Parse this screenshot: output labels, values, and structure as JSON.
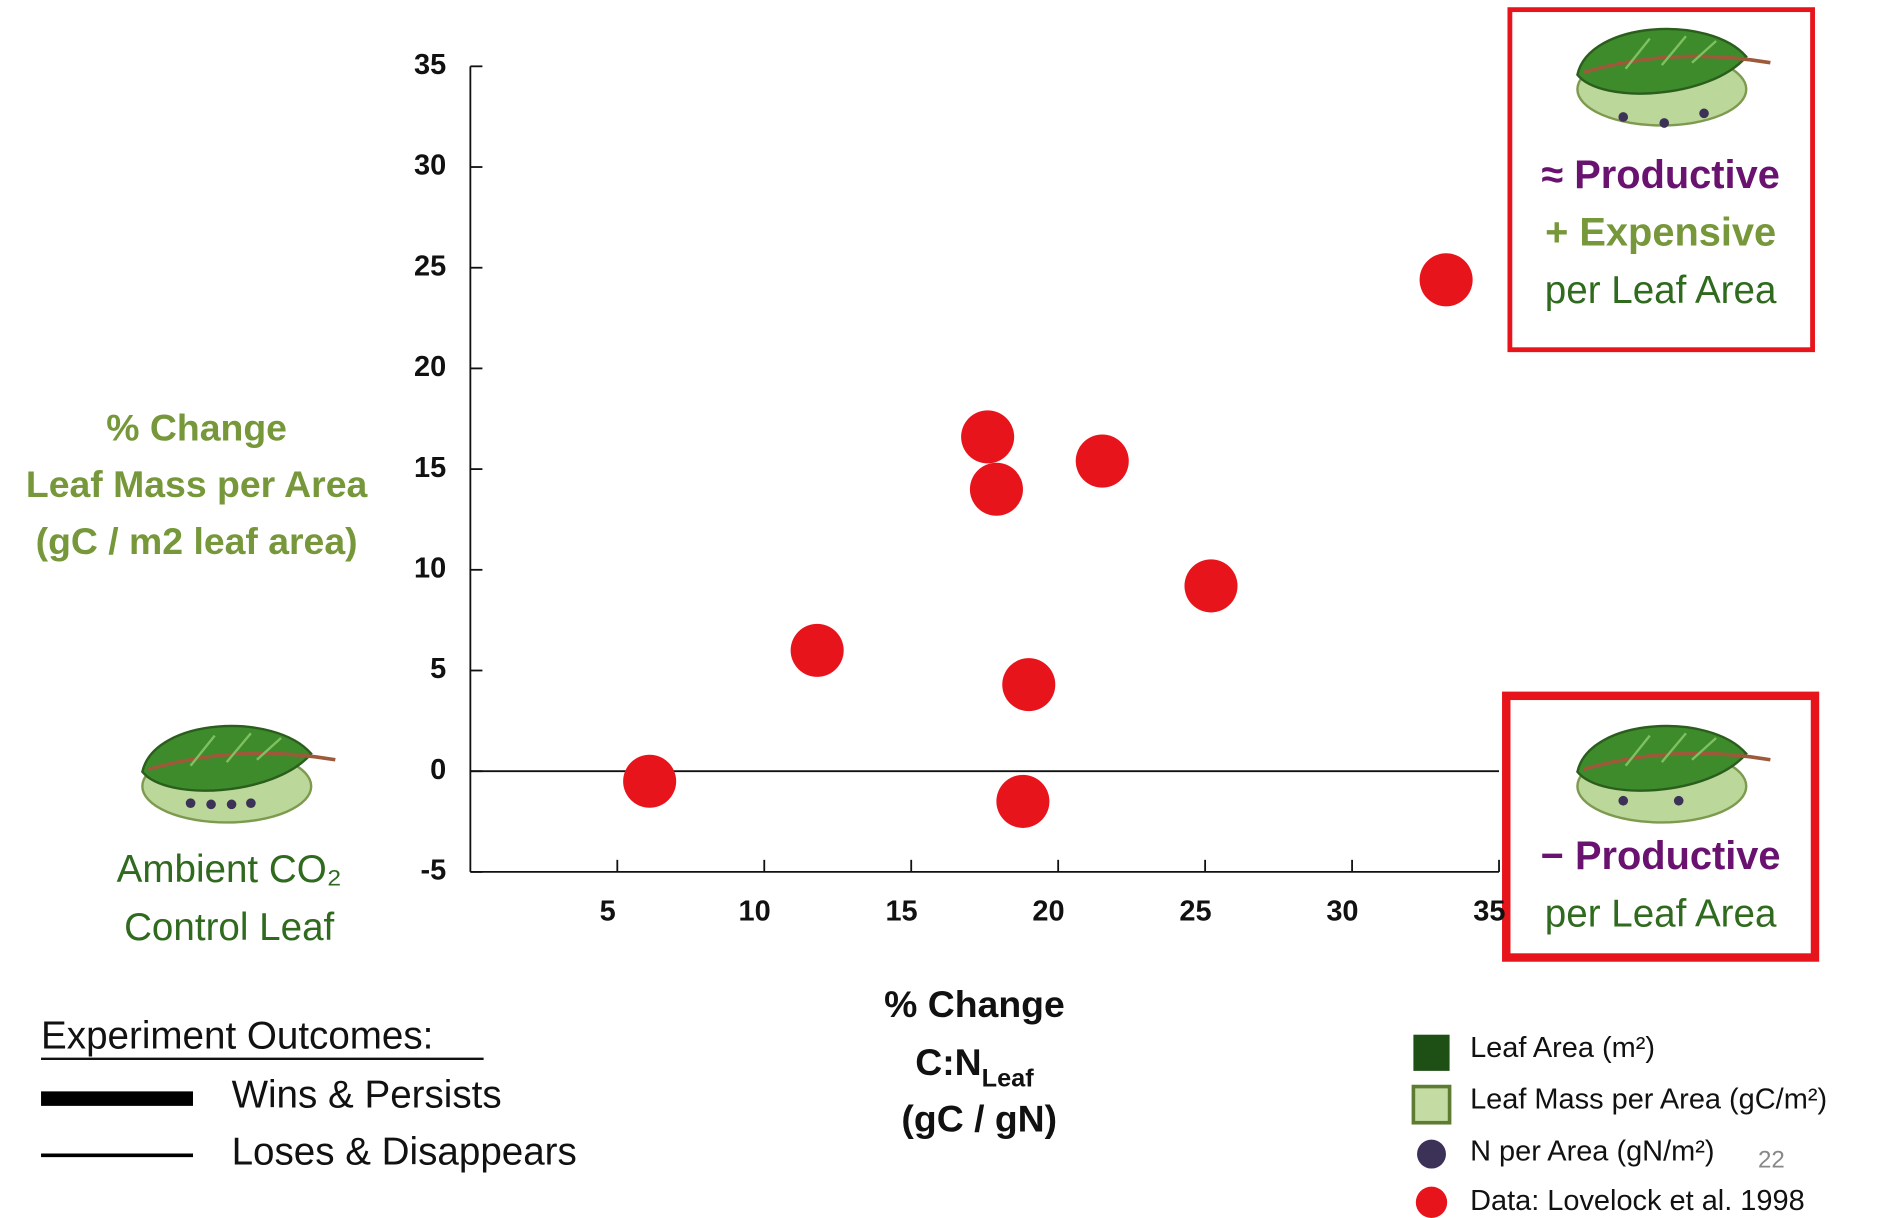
{
  "chart_data": {
    "type": "scatter",
    "y_label": [
      "% Change",
      "Leaf Mass per Area",
      "(gC / m2 leaf area)"
    ],
    "x_label": {
      "line1": "% Change",
      "line2": "C:N",
      "line2_sub": "Leaf",
      "line3": "(gC / gN)"
    },
    "x": [
      6.1,
      11.8,
      17.6,
      17.9,
      21.5,
      25.2,
      19.0,
      18.8,
      33.2
    ],
    "series": [
      {
        "name": "Data: Lovelock et al. 1998",
        "color": "#e8141b",
        "values": [
          -0.5,
          6.0,
          16.6,
          14.0,
          15.4,
          9.2,
          4.3,
          -1.5,
          24.4
        ]
      }
    ],
    "xlim": [
      0,
      35
    ],
    "ylim": [
      -5,
      35
    ],
    "xticks": [
      5,
      10,
      15,
      20,
      25,
      30,
      35
    ],
    "yticks": [
      -5,
      0,
      5,
      10,
      15,
      20,
      25,
      30,
      35
    ]
  },
  "top_box": [
    "≈ Productive",
    "+ Expensive",
    "per Leaf Area"
  ],
  "bottom_box": [
    "− Productive",
    "per Leaf Area"
  ],
  "control_leaf": [
    "Ambient CO₂",
    "Control Leaf"
  ],
  "outcomes": {
    "title": "Experiment Outcomes:",
    "items": [
      "Wins & Persists",
      "Loses & Disappears"
    ]
  },
  "legend": [
    "Leaf Area (m²)",
    "Leaf Mass per Area (gC/m²)",
    "N per Area (gN/m²)"
  ],
  "page_number": "22"
}
